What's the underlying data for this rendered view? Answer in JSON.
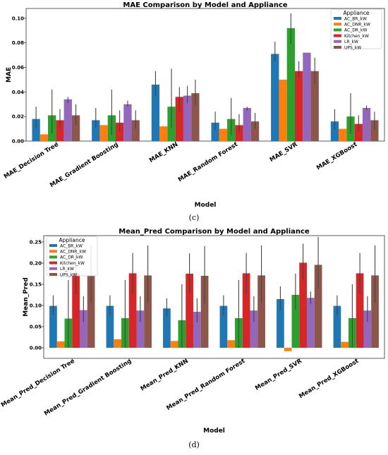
{
  "legend_title": "Appliance",
  "colors": [
    "#1f77b4",
    "#ff7f0e",
    "#2ca02c",
    "#d62728",
    "#9467bd",
    "#8c564b"
  ],
  "chart_data": [
    {
      "type": "bar",
      "title": "MAE Comparison by Model and Appliance",
      "xlabel": "Model",
      "ylabel": "MAE",
      "ylim": [
        0,
        0.108
      ],
      "yticks": [
        0.0,
        0.02,
        0.04,
        0.06,
        0.08,
        0.1
      ],
      "ytick_labels": [
        "0.00",
        "0.02",
        "0.04",
        "0.06",
        "0.08",
        "0.10"
      ],
      "legend_position": "top-right",
      "caption": "(c)",
      "categories": [
        "MAE_Decision Tree",
        "MAE_Gradient Boosting",
        "MAE_KNN",
        "MAE_Random Forest",
        "MAE_SVR",
        "MAE_XGBoost"
      ],
      "series": [
        {
          "name": "AC_BR_kW",
          "values": [
            0.018,
            0.017,
            0.046,
            0.015,
            0.071,
            0.016
          ],
          "err_low": [
            0.01,
            0.011,
            0.037,
            0.009,
            0.065,
            0.009
          ],
          "err_high": [
            0.028,
            0.027,
            0.057,
            0.024,
            0.081,
            0.026
          ]
        },
        {
          "name": "AC_DNR_kW",
          "values": [
            0.0055,
            0.013,
            0.012,
            0.01,
            0.05,
            0.01
          ],
          "err_low": [
            null,
            null,
            null,
            null,
            null,
            null
          ],
          "err_high": [
            null,
            null,
            null,
            null,
            null,
            null
          ]
        },
        {
          "name": "AC_DR_kW",
          "values": [
            0.021,
            0.021,
            0.028,
            0.018,
            0.092,
            0.02
          ],
          "err_low": [
            0.006,
            0.005,
            0.011,
            0.005,
            0.079,
            0.006
          ],
          "err_high": [
            0.042,
            0.042,
            0.059,
            0.035,
            0.104,
            0.039
          ]
        },
        {
          "name": "Kitchen_kW",
          "values": [
            0.017,
            0.015,
            0.036,
            0.013,
            0.057,
            0.014
          ],
          "err_low": [
            0.01,
            0.008,
            0.024,
            0.007,
            0.051,
            0.008
          ],
          "err_high": [
            0.026,
            0.025,
            0.044,
            0.022,
            0.065,
            0.021
          ]
        },
        {
          "name": "LR_kW",
          "values": [
            0.034,
            0.03,
            0.037,
            0.027,
            0.072,
            0.027
          ],
          "err_low": [
            0.031,
            0.028,
            0.031,
            0.025,
            0.072,
            0.025
          ],
          "err_high": [
            0.036,
            0.033,
            0.045,
            0.028,
            0.072,
            0.029
          ]
        },
        {
          "name": "UPS_kW",
          "values": [
            0.021,
            0.017,
            0.039,
            0.016,
            0.057,
            0.017
          ],
          "err_low": [
            0.013,
            0.01,
            0.029,
            0.01,
            0.046,
            0.009
          ],
          "err_high": [
            0.03,
            0.025,
            0.05,
            0.023,
            0.068,
            0.024
          ]
        }
      ]
    },
    {
      "type": "bar",
      "title": "Mean_Pred Comparison by Model and Appliance",
      "xlabel": "Model",
      "ylabel": "Mean_Pred",
      "ylim": [
        -0.025,
        0.265
      ],
      "yticks": [
        0.0,
        0.05,
        0.1,
        0.15,
        0.2,
        0.25
      ],
      "ytick_labels": [
        "0.00",
        "0.05",
        "0.10",
        "0.15",
        "0.20",
        "0.25"
      ],
      "legend_position": "top-left",
      "caption": "(d)",
      "categories": [
        "Mean_Pred_Decision Tree",
        "Mean_Pred_Gradient Boosting",
        "Mean_Pred_KNN",
        "Mean_Pred_Random Forest",
        "Mean_Pred_SVR",
        "Mean_Pred_XGBoost"
      ],
      "series": [
        {
          "name": "AC_BR_kW",
          "values": [
            0.099,
            0.099,
            0.093,
            0.099,
            0.115,
            0.099
          ],
          "err_low": [
            0.077,
            0.077,
            0.074,
            0.077,
            0.089,
            0.077
          ],
          "err_high": [
            0.124,
            0.124,
            0.117,
            0.124,
            0.145,
            0.124
          ]
        },
        {
          "name": "AC_DNR_kW",
          "values": [
            0.015,
            0.02,
            0.016,
            0.018,
            -0.008,
            0.014
          ],
          "err_low": [
            null,
            null,
            null,
            null,
            null,
            null
          ],
          "err_high": [
            null,
            null,
            null,
            null,
            null,
            null
          ]
        },
        {
          "name": "AC_DR_kW",
          "values": [
            0.069,
            0.07,
            0.065,
            0.07,
            0.125,
            0.07
          ],
          "err_low": [
            0.0,
            0.0,
            0.0,
            0.0,
            0.09,
            0.0
          ],
          "err_high": [
            0.16,
            0.16,
            0.15,
            0.16,
            0.175,
            0.15
          ]
        },
        {
          "name": "Kitchen_kW",
          "values": [
            0.176,
            0.176,
            0.175,
            0.176,
            0.201,
            0.176
          ],
          "err_low": [
            0.127,
            0.127,
            0.129,
            0.127,
            0.16,
            0.127
          ],
          "err_high": [
            0.224,
            0.224,
            0.223,
            0.224,
            0.246,
            0.224
          ]
        },
        {
          "name": "LR_kW",
          "values": [
            0.089,
            0.088,
            0.085,
            0.088,
            0.118,
            0.088
          ],
          "err_low": [
            0.061,
            0.061,
            0.06,
            0.061,
            0.103,
            0.061
          ],
          "err_high": [
            0.122,
            0.122,
            0.117,
            0.122,
            0.133,
            0.122
          ]
        },
        {
          "name": "UPS_kW",
          "values": [
            0.171,
            0.171,
            0.17,
            0.171,
            0.196,
            0.171
          ],
          "err_low": [
            0.106,
            0.106,
            0.105,
            0.106,
            0.14,
            0.106
          ],
          "err_high": [
            0.242,
            0.242,
            0.24,
            0.242,
            0.262,
            0.242
          ]
        }
      ]
    }
  ]
}
